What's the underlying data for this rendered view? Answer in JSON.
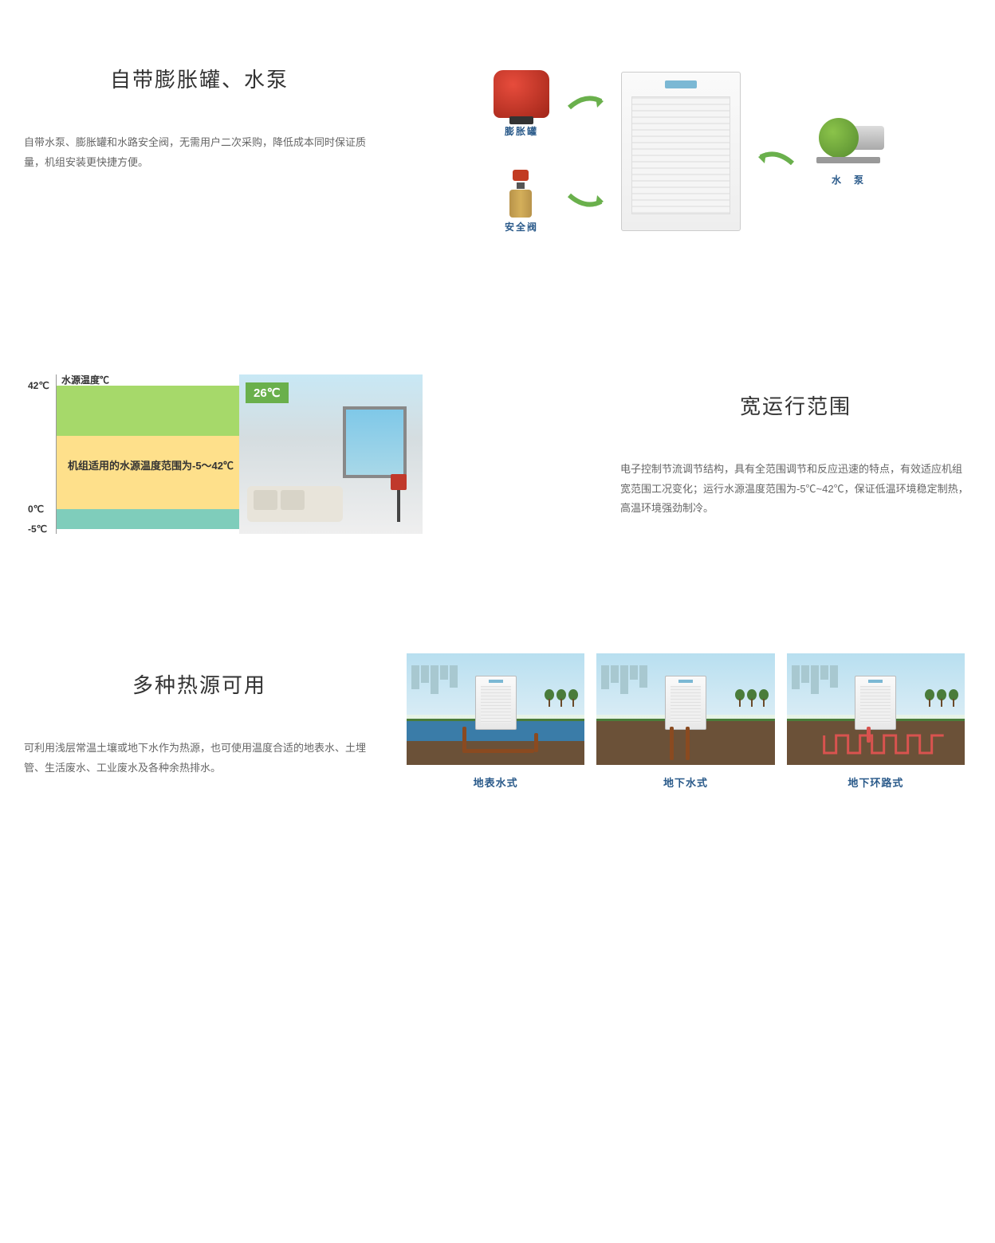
{
  "section1": {
    "title": "自带膨胀罐、水泵",
    "desc": "自带水泵、膨胀罐和水路安全阀，无需用户二次采购，降低成本同时保证质量，机组安装更快捷方便。",
    "labels": {
      "expansion_tank": "膨胀罐",
      "safety_valve": "安全阀",
      "pump": "水　泵"
    },
    "colors": {
      "tank": "#c0392b",
      "valve_brass": "#c9a04a",
      "valve_cap": "#b53224",
      "pump_green": "#6ab04c",
      "arrow": "#6ab04c",
      "label": "#2a5a8a"
    }
  },
  "section2": {
    "title": "宽运行范围",
    "desc": "电子控制节流调节结构，具有全范围调节和反应迅速的特点，有效适应机组宽范围工况变化；运行水源温度范围为-5℃~42℃，保证低温环境稳定制热，高温环境强劲制冷。",
    "axis_label": "水源温度℃",
    "band_text": "机组适用的水源温度范围为-5～42℃",
    "room_temp": "26℃",
    "ticks": [
      {
        "label": "42℃",
        "pct": 0
      },
      {
        "label": "0℃",
        "pct": 86
      },
      {
        "label": "-5℃",
        "pct": 100
      }
    ],
    "bands": [
      {
        "color": "#a6d96a",
        "top_pct": 0,
        "height_pct": 35
      },
      {
        "color": "#fee08b",
        "top_pct": 35,
        "height_pct": 51
      },
      {
        "color": "#7fcdbb",
        "top_pct": 86,
        "height_pct": 14
      }
    ]
  },
  "section3": {
    "title": "多种热源可用",
    "desc": "可利用浅层常温土壤或地下水作为热源，也可使用温度合适的地表水、土埋管、生活废水、工业废水及各种余热排水。",
    "items": [
      {
        "label": "地表水式",
        "type": "surface"
      },
      {
        "label": "地下水式",
        "type": "ground"
      },
      {
        "label": "地下环路式",
        "type": "loop"
      }
    ],
    "colors": {
      "sky": "#b8dff0",
      "grass": "#4a7c3a",
      "soil": "#6b5138",
      "water": "#3a7ca8",
      "pipe": "#8a4a20",
      "loop": "#d9534f",
      "label": "#2a5a8a"
    }
  }
}
